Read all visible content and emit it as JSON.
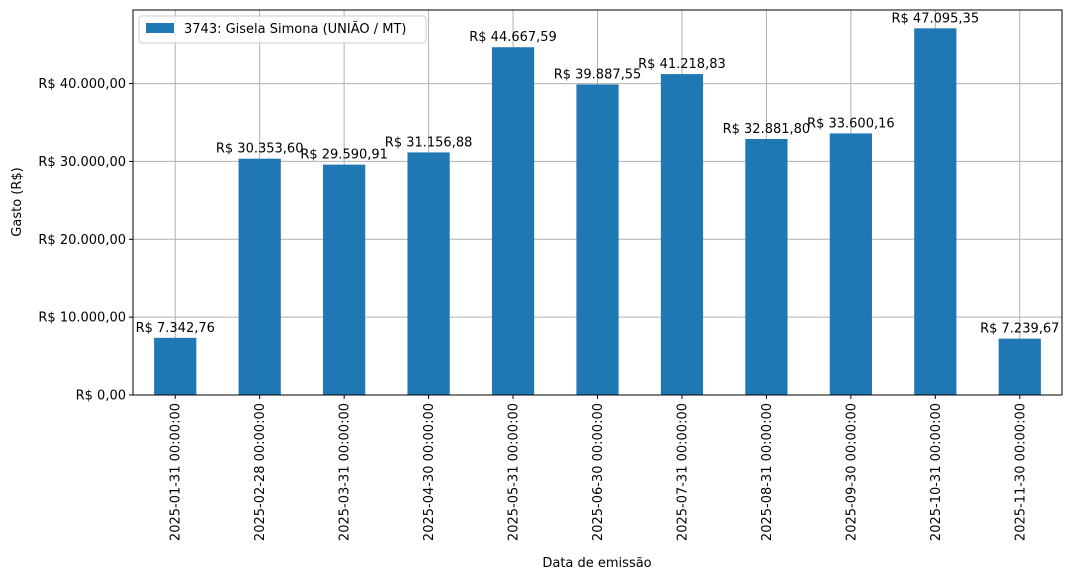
{
  "chart_data": {
    "type": "bar",
    "categories": [
      "2025-01-31 00:00:00",
      "2025-02-28 00:00:00",
      "2025-03-31 00:00:00",
      "2025-04-30 00:00:00",
      "2025-05-31 00:00:00",
      "2025-06-30 00:00:00",
      "2025-07-31 00:00:00",
      "2025-08-31 00:00:00",
      "2025-09-30 00:00:00",
      "2025-10-31 00:00:00",
      "2025-11-30 00:00:00"
    ],
    "series": [
      {
        "name": "3743: Gisela Simona (UNIÃO / MT)",
        "color": "#1f77b4",
        "values": [
          7342.76,
          30353.6,
          29590.91,
          31156.88,
          44667.59,
          39887.55,
          41218.83,
          32881.8,
          33600.16,
          47095.35,
          7239.67
        ]
      }
    ],
    "data_labels": [
      "R$ 7.342,76",
      "R$ 30.353,60",
      "R$ 29.590,91",
      "R$ 31.156,88",
      "R$ 44.667,59",
      "R$ 39.887,55",
      "R$ 41.218,83",
      "R$ 32.881,80",
      "R$ 33.600,16",
      "R$ 47.095,35",
      "R$ 7.239,67"
    ],
    "xlabel": "Data de emissão",
    "ylabel": "Gasto (R$)",
    "ylim": [
      0,
      49450
    ],
    "yticks": [
      0,
      10000,
      20000,
      30000,
      40000
    ],
    "ytick_labels": [
      "R$ 0,00",
      "R$ 10.000,00",
      "R$ 20.000,00",
      "R$ 30.000,00",
      "R$ 40.000,00"
    ],
    "grid": true,
    "legend_position": "top-left"
  }
}
